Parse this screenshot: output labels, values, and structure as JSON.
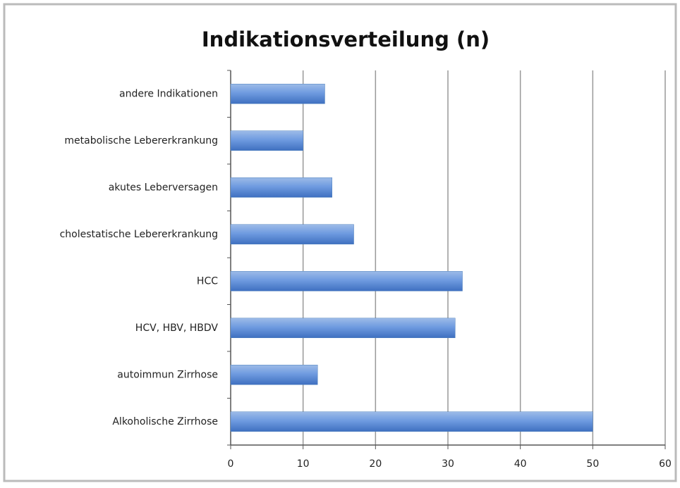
{
  "chart_data": {
    "type": "bar",
    "orientation": "horizontal",
    "title": "Indikationsverteilung (n)",
    "categories": [
      "andere Indikationen",
      "metabolische Lebererkrankung",
      "akutes Leberversagen",
      "cholestatische Lebererkrankung",
      "HCC",
      "HCV, HBV, HBDV",
      "autoimmun Zirrhose",
      "Alkoholische Zirrhose"
    ],
    "values": [
      13,
      10,
      14,
      17,
      32,
      31,
      12,
      50
    ],
    "color": "#4f81bd",
    "xlim": [
      0,
      60
    ],
    "xticks": [
      0,
      10,
      20,
      30,
      40,
      50,
      60
    ],
    "grid": true
  }
}
